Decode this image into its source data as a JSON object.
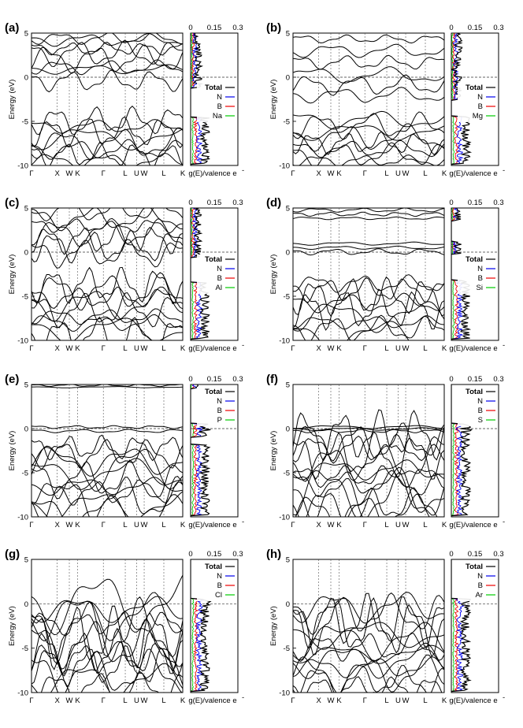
{
  "figure": {
    "dos_axis_label": "g(E)/valence e",
    "dos_axis_superscript": "-",
    "energy_axis_label": "Energy (eV)",
    "dos_ticks": [
      "0",
      "0.15",
      "0.3"
    ],
    "kpath": [
      "Γ",
      "X",
      "W",
      "K",
      "Γ",
      "L",
      "U",
      "W",
      "L",
      "K"
    ],
    "series_colors": {
      "Total": "#000000",
      "N": "#0000ee",
      "B": "#ee0000",
      "X": "#00cc00"
    }
  },
  "chart_data": [
    {
      "panel": "(a)",
      "type": "line",
      "element": "Na",
      "xlabel": "",
      "ylabel": "Energy (eV)",
      "ylim": [
        -10,
        5
      ],
      "yticks": [
        "5",
        "0",
        "-5",
        "-10"
      ],
      "legend": [
        "Total",
        "N",
        "B",
        "Na"
      ],
      "fermi_level": 0,
      "dos_xlim": [
        0,
        0.3
      ]
    },
    {
      "panel": "(b)",
      "type": "line",
      "element": "Mg",
      "xlabel": "",
      "ylabel": "Energy (eV)",
      "ylim": [
        -10,
        5
      ],
      "yticks": [
        "5",
        "0",
        "-5",
        "-10"
      ],
      "legend": [
        "Total",
        "N",
        "B",
        "Mg"
      ],
      "fermi_level": 0,
      "dos_xlim": [
        0,
        0.3
      ]
    },
    {
      "panel": "(c)",
      "type": "line",
      "element": "Al",
      "xlabel": "",
      "ylabel": "Energy (eV)",
      "ylim": [
        -10,
        5
      ],
      "yticks": [
        "5",
        "0",
        "-5",
        "-10"
      ],
      "legend": [
        "Total",
        "N",
        "B",
        "Al"
      ],
      "fermi_level": 0,
      "dos_xlim": [
        0,
        0.3
      ]
    },
    {
      "panel": "(d)",
      "type": "line",
      "element": "Si",
      "xlabel": "",
      "ylabel": "Energy (eV)",
      "ylim": [
        -10,
        5
      ],
      "yticks": [
        "5",
        "0",
        "-5",
        "-10"
      ],
      "legend": [
        "Total",
        "N",
        "B",
        "Si"
      ],
      "fermi_level": 0,
      "dos_xlim": [
        0,
        0.3
      ]
    },
    {
      "panel": "(e)",
      "type": "line",
      "element": "P",
      "xlabel": "",
      "ylabel": "Energy (eV)",
      "ylim": [
        -10,
        5
      ],
      "yticks": [
        "5",
        "0",
        "-5",
        "-10"
      ],
      "legend": [
        "Total",
        "N",
        "B",
        "P"
      ],
      "fermi_level": 0,
      "dos_xlim": [
        0,
        0.3
      ]
    },
    {
      "panel": "(f)",
      "type": "line",
      "element": "S",
      "xlabel": "",
      "ylabel": "Energy (eV)",
      "ylim": [
        -10,
        5
      ],
      "yticks": [
        "5",
        "0",
        "-5",
        "-10"
      ],
      "legend": [
        "Total",
        "N",
        "B",
        "S"
      ],
      "fermi_level": 0,
      "dos_xlim": [
        0,
        0.3
      ]
    },
    {
      "panel": "(g)",
      "type": "line",
      "element": "Cl",
      "xlabel": "",
      "ylabel": "Energy (eV)",
      "ylim": [
        -10,
        5
      ],
      "yticks": [
        "5",
        "0",
        "-5",
        "-10"
      ],
      "legend": [
        "Total",
        "N",
        "B",
        "Cl"
      ],
      "fermi_level": 0,
      "dos_xlim": [
        0,
        0.3
      ]
    },
    {
      "panel": "(h)",
      "type": "line",
      "element": "Ar",
      "xlabel": "",
      "ylabel": "Energy (eV)",
      "ylim": [
        -10,
        5
      ],
      "yticks": [
        "5",
        "0",
        "-5",
        "-10"
      ],
      "legend": [
        "Total",
        "N",
        "B",
        "Ar"
      ],
      "fermi_level": 0,
      "dos_xlim": [
        0,
        0.3
      ]
    }
  ]
}
